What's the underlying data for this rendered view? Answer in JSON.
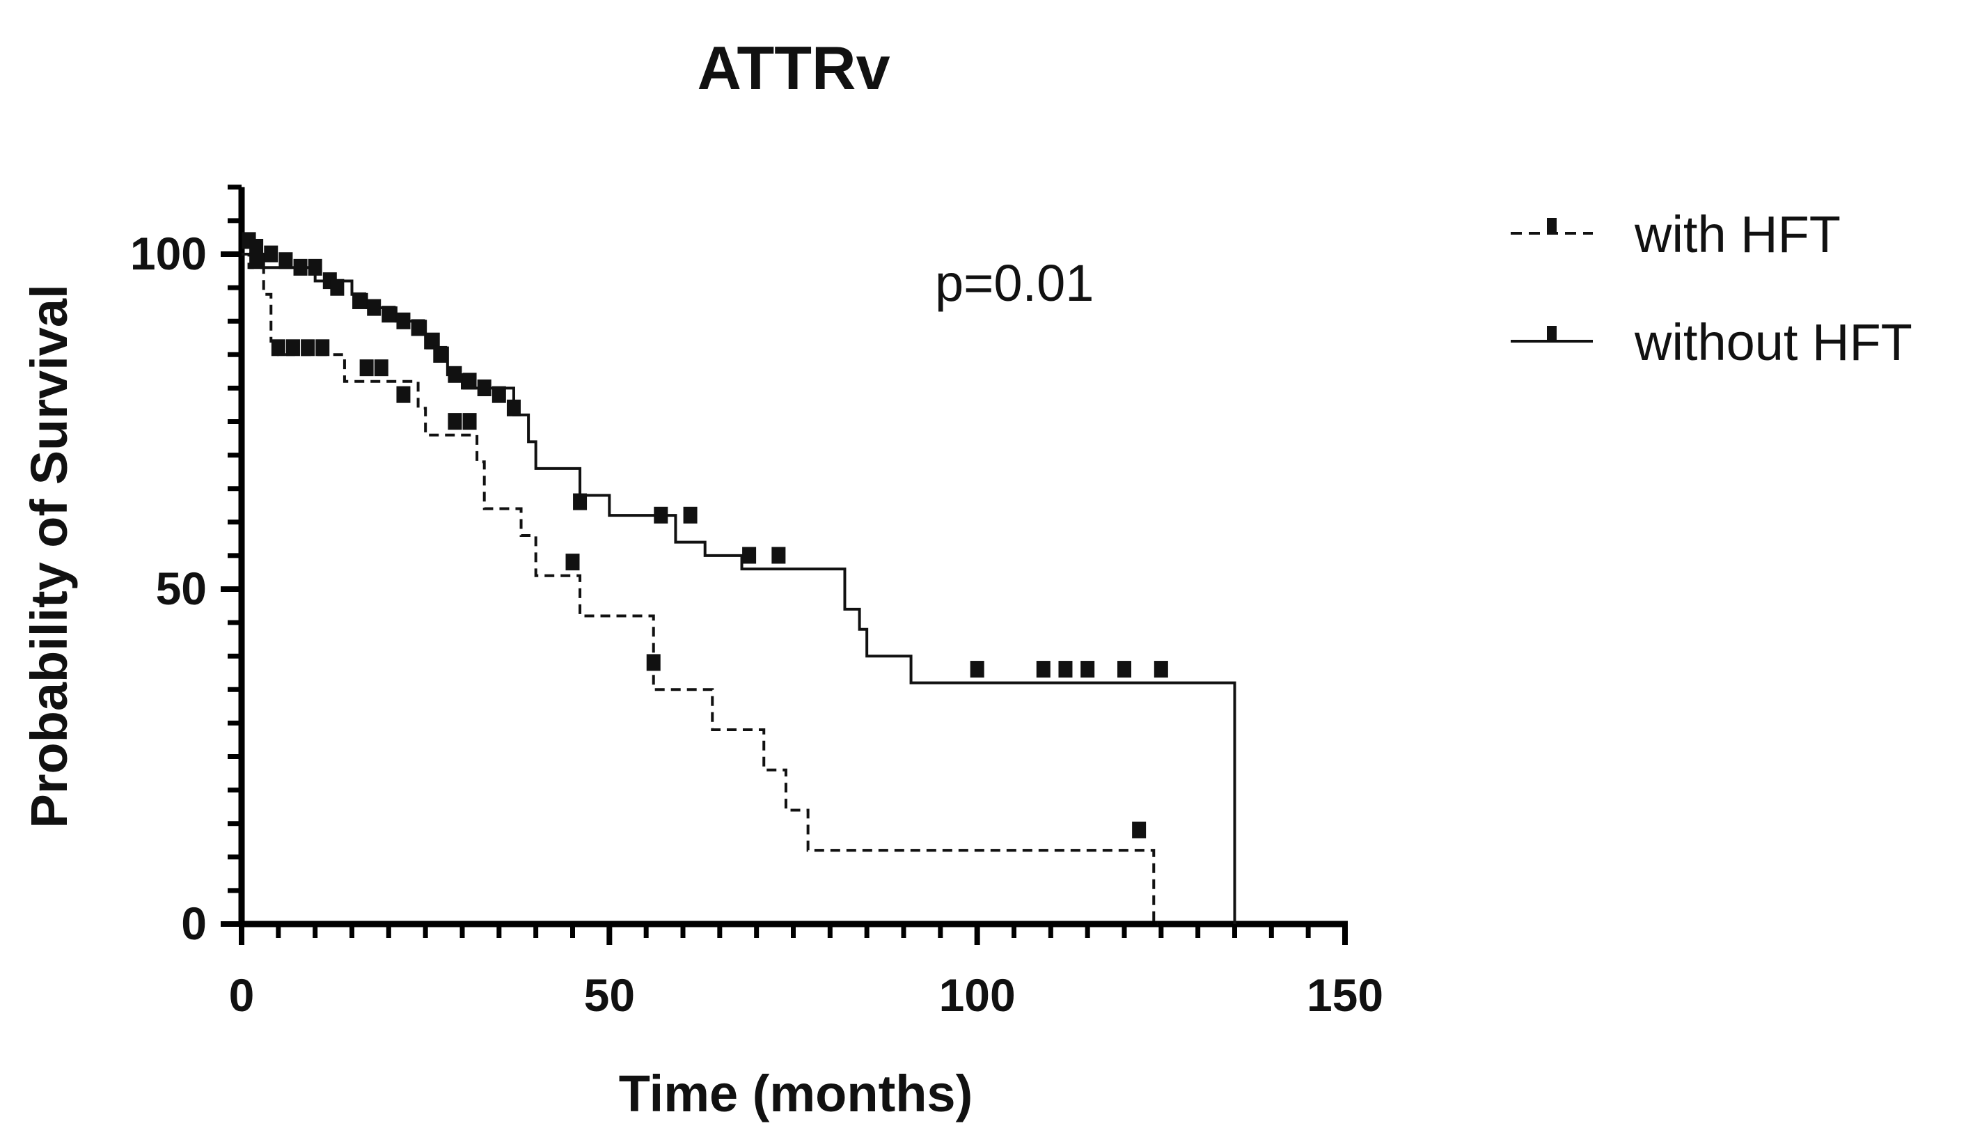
{
  "chart_data": {
    "type": "line",
    "subtype": "kaplan-meier",
    "title": "ATTRv",
    "xlabel": "Time (months)",
    "ylabel": "Probability of Survival",
    "xlim": [
      0,
      150
    ],
    "ylim": [
      0,
      110
    ],
    "xticks": [
      0,
      50,
      100,
      150
    ],
    "yticks": [
      0,
      50,
      100
    ],
    "annotation": "p=0.01",
    "legend_position": "top-right-outside",
    "series": [
      {
        "name": "with HFT",
        "style": "dashed",
        "color": "#111111",
        "steps": [
          [
            0,
            100
          ],
          [
            1,
            98
          ],
          [
            3,
            94
          ],
          [
            4,
            87
          ],
          [
            5,
            85
          ],
          [
            14,
            81
          ],
          [
            24,
            77
          ],
          [
            25,
            73
          ],
          [
            32,
            69
          ],
          [
            33,
            62
          ],
          [
            38,
            58
          ],
          [
            40,
            52
          ],
          [
            46,
            46
          ],
          [
            56,
            35
          ],
          [
            64,
            29
          ],
          [
            71,
            23
          ],
          [
            74,
            17
          ],
          [
            77,
            11
          ],
          [
            124,
            0
          ]
        ],
        "end_time": 124.5,
        "censored": [
          [
            2,
            98
          ],
          [
            5,
            85
          ],
          [
            7,
            85
          ],
          [
            9,
            85
          ],
          [
            11,
            85
          ],
          [
            17,
            82
          ],
          [
            19,
            82
          ],
          [
            22,
            78
          ],
          [
            29,
            74
          ],
          [
            31,
            74
          ],
          [
            45,
            53
          ],
          [
            56,
            38
          ],
          [
            122,
            13
          ]
        ]
      },
      {
        "name": "without HFT",
        "style": "solid",
        "color": "#111111",
        "steps": [
          [
            0,
            100
          ],
          [
            3,
            98
          ],
          [
            10,
            96
          ],
          [
            15,
            94
          ],
          [
            17,
            92
          ],
          [
            21,
            90
          ],
          [
            25,
            86
          ],
          [
            28,
            82
          ],
          [
            30,
            80
          ],
          [
            37,
            76
          ],
          [
            39,
            72
          ],
          [
            40,
            68
          ],
          [
            46,
            64
          ],
          [
            50,
            61
          ],
          [
            59,
            57
          ],
          [
            63,
            55
          ],
          [
            68,
            53
          ],
          [
            82,
            47
          ],
          [
            84,
            44
          ],
          [
            85,
            40
          ],
          [
            91,
            36
          ],
          [
            135,
            0
          ]
        ],
        "end_time": 135,
        "censored": [
          [
            1,
            101
          ],
          [
            2,
            100
          ],
          [
            4,
            99
          ],
          [
            6,
            98
          ],
          [
            8,
            97
          ],
          [
            10,
            97
          ],
          [
            12,
            95
          ],
          [
            13,
            94
          ],
          [
            16,
            92
          ],
          [
            18,
            91
          ],
          [
            20,
            90
          ],
          [
            22,
            89
          ],
          [
            24,
            88
          ],
          [
            26,
            86
          ],
          [
            27,
            84
          ],
          [
            29,
            81
          ],
          [
            31,
            80
          ],
          [
            33,
            79
          ],
          [
            35,
            78
          ],
          [
            37,
            76
          ],
          [
            46,
            62
          ],
          [
            57,
            60
          ],
          [
            61,
            60
          ],
          [
            69,
            54
          ],
          [
            73,
            54
          ],
          [
            100,
            37
          ],
          [
            109,
            37
          ],
          [
            112,
            37
          ],
          [
            115,
            37
          ],
          [
            120,
            37
          ],
          [
            125,
            37
          ]
        ]
      }
    ]
  }
}
